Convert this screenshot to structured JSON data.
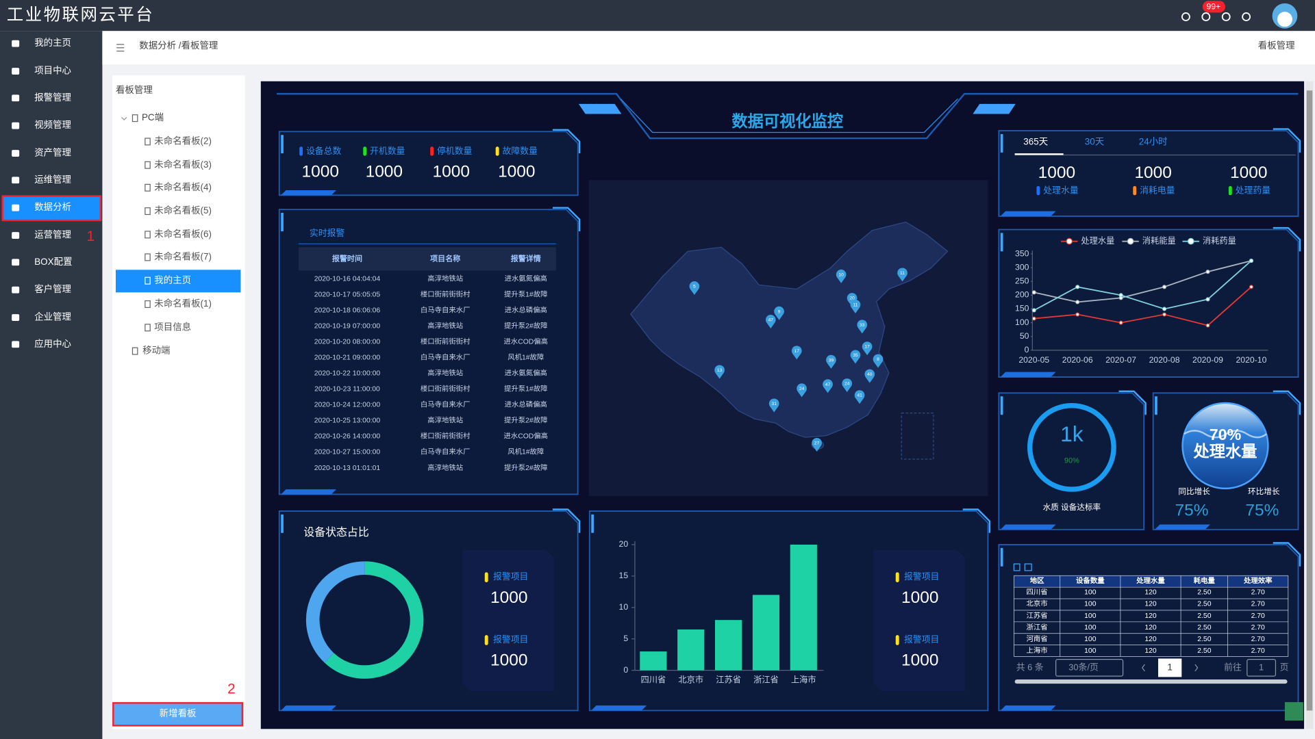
{
  "header": {
    "title": "工业物联网云平台",
    "badge": "99+"
  },
  "sidebar": {
    "items": [
      "我的主页",
      "项目中心",
      "报警管理",
      "视频管理",
      "资产管理",
      "运维管理",
      "数据分析",
      "运营管理",
      "BOX配置",
      "客户管理",
      "企业管理",
      "应用中心"
    ],
    "annotation": "1"
  },
  "breadcrumb": "数据分析 /看板管理",
  "page_title": "看板管理",
  "board_panel": {
    "title": "看板管理",
    "pc_group": "PC端",
    "boards": [
      "未命名看板(2)",
      "未命名看板(3)",
      "未命名看板(4)",
      "未命名看板(5)",
      "未命名看板(6)",
      "未命名看板(7)",
      "我的主页",
      "未命名看板(1)",
      "项目信息"
    ],
    "mobile_group": "移动端",
    "add_button": "新增看板",
    "annotation": "2"
  },
  "dashboard": {
    "title": "数据可视化监控",
    "device_counts": [
      {
        "label": "设备总数",
        "value": 1000,
        "color": "#1e6fff"
      },
      {
        "label": "开机数量",
        "value": 1000,
        "color": "#1ee01e"
      },
      {
        "label": "停机数量",
        "value": 1000,
        "color": "#ff2020"
      },
      {
        "label": "故障数量",
        "value": 1000,
        "color": "#ffe11e"
      }
    ],
    "alarms": {
      "tab": "实时报警",
      "columns": [
        "报警时间",
        "项目名称",
        "报警详情"
      ],
      "rows": [
        [
          "2020-10-16 04:04:04",
          "高淳地铁站",
          "进水氨氮偏高"
        ],
        [
          "2020-10-17 05:05:05",
          "楼口街前街街村",
          "提升泵1#故障"
        ],
        [
          "2020-10-18 06:06:06",
          "白马寺自来水厂",
          "进水总磷偏高"
        ],
        [
          "2020-10-19 07:00:00",
          "高淳地铁站",
          "提升泵2#故障"
        ],
        [
          "2020-10-20 08:00:00",
          "楼口街前街街村",
          "进水COD偏高"
        ],
        [
          "2020-10-21 09:00:00",
          "白马寺自来水厂",
          "风机1#故障"
        ],
        [
          "2020-10-22 10:00:00",
          "高淳地铁站",
          "进水氨氮偏高"
        ],
        [
          "2020-10-23 11:00:00",
          "楼口街前街街村",
          "提升泵1#故障"
        ],
        [
          "2020-10-24 12:00:00",
          "白马寺自来水厂",
          "进水总磷偏高"
        ],
        [
          "2020-10-25 13:00:00",
          "高淳地铁站",
          "提升泵2#故障"
        ],
        [
          "2020-10-26 14:00:00",
          "楼口街前街街村",
          "进水COD偏高"
        ],
        [
          "2020-10-27 15:00:00",
          "白马寺自来水厂",
          "风机1#故障"
        ],
        [
          "2020-10-13 01:01:01",
          "高淳地铁站",
          "提升泵2#故障"
        ]
      ]
    },
    "map_pins": [
      "5",
      "10",
      "11",
      "20",
      "11",
      "9",
      "47",
      "33",
      "17",
      "17",
      "39",
      "35",
      "8",
      "13",
      "40",
      "24",
      "47",
      "24",
      "41",
      "31",
      "27"
    ],
    "period_tabs": [
      "365天",
      "30天",
      "24小时"
    ],
    "totals": [
      {
        "label": "处理水量",
        "value": 1000,
        "color": "#1e6fff"
      },
      {
        "label": "消耗电量",
        "value": 1000,
        "color": "#ff8a1e"
      },
      {
        "label": "处理药量",
        "value": 1000,
        "color": "#1ee01e"
      }
    ],
    "line_chart": {
      "type": "line",
      "x": [
        "2020-05",
        "2020-06",
        "2020-07",
        "2020-08",
        "2020-09",
        "2020-10"
      ],
      "series": [
        {
          "name": "处理水量",
          "color": "#e53935",
          "values": [
            115,
            130,
            100,
            130,
            90,
            230
          ]
        },
        {
          "name": "消耗能量",
          "color": "#a9b4bf",
          "values": [
            210,
            175,
            190,
            230,
            285,
            325
          ]
        },
        {
          "name": "消耗药量",
          "color": "#7fd3de",
          "values": [
            145,
            230,
            200,
            150,
            185,
            325
          ]
        }
      ],
      "ylim": [
        0,
        350
      ],
      "yticks": [
        0,
        50,
        100,
        150,
        200,
        250,
        300,
        350
      ]
    },
    "gauge": {
      "value": "1k",
      "percent": "90%",
      "label": "水质 设备达标率"
    },
    "water": {
      "percent": "70%",
      "label": "处理水量",
      "yoy_label": "同比增长",
      "yoy": "75%",
      "mom_label": "环比增长",
      "mom": "75%"
    },
    "status_ratio": {
      "type": "pie",
      "title": "设备状态占比",
      "values": [
        62,
        38
      ],
      "colors": [
        "#1ed2a6",
        "#4ea6ee"
      ]
    },
    "alarm_stats_1": [
      {
        "label": "报警项目",
        "value": 1000
      },
      {
        "label": "报警项目",
        "value": 1000
      }
    ],
    "bar_chart": {
      "type": "bar",
      "categories": [
        "四川省",
        "北京市",
        "江苏省",
        "浙江省",
        "上海市"
      ],
      "values": [
        3,
        6.5,
        8,
        12,
        20
      ],
      "color": "#1ed2a6",
      "ylim": [
        0,
        20
      ],
      "yticks": [
        0,
        5,
        10,
        15,
        20
      ]
    },
    "alarm_stats_2": [
      {
        "label": "报警项目",
        "value": 1000
      },
      {
        "label": "报警项目",
        "value": 1000
      }
    ],
    "region_table": {
      "columns": [
        "地区",
        "设备数量",
        "处理水量",
        "耗电量",
        "处理效率"
      ],
      "rows": [
        [
          "四川省",
          100,
          120,
          "2.50",
          "2.70"
        ],
        [
          "北京市",
          100,
          120,
          "2.50",
          "2.70"
        ],
        [
          "江苏省",
          100,
          120,
          "2.50",
          "2.70"
        ],
        [
          "浙江省",
          100,
          120,
          "2.50",
          "2.70"
        ],
        [
          "河南省",
          100,
          120,
          "2.50",
          "2.70"
        ],
        [
          "上海市",
          100,
          120,
          "2.50",
          "2.70"
        ]
      ]
    },
    "pagination": {
      "total": "共 6 条",
      "page_size": "30条/页",
      "page": 1,
      "goto": "前往",
      "goto_value": 1,
      "unit": "页"
    }
  }
}
